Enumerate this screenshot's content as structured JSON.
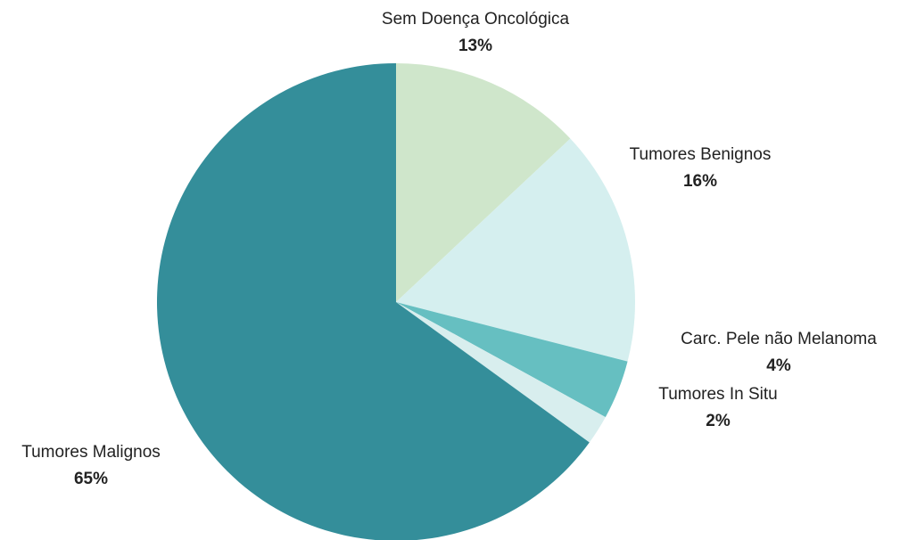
{
  "chart_data": {
    "type": "pie",
    "categories": [
      "Sem Doença Oncológica",
      "Tumores Benignos",
      "Carc. Pele não Melanoma",
      "Tumores In Situ",
      "Tumores Malignos"
    ],
    "values": [
      13,
      16,
      4,
      2,
      65
    ],
    "value_labels": [
      "13%",
      "16%",
      "4%",
      "2%",
      "65%"
    ],
    "colors": [
      "#cfe6cb",
      "#d5efef",
      "#66bfc1",
      "#d8eeee",
      "#348e9a"
    ]
  }
}
